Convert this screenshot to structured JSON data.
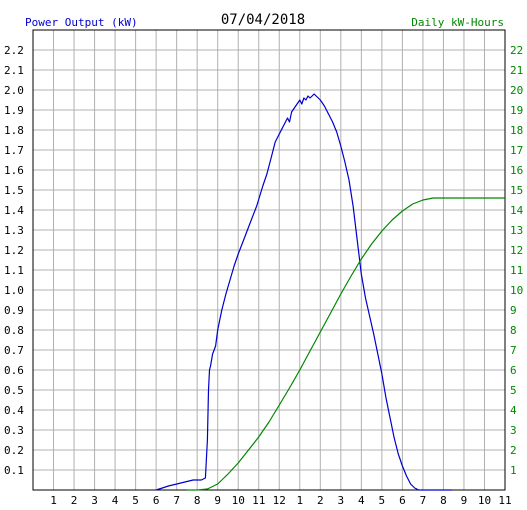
{
  "chart_data": {
    "type": "line",
    "title": "07/04/2018",
    "ylabel_left": "Power Output (kW)",
    "ylabel_right": "Daily kW-Hours",
    "x_tick_labels": [
      "1",
      "2",
      "3",
      "4",
      "5",
      "6",
      "7",
      "8",
      "9",
      "10",
      "11",
      "12",
      "1",
      "2",
      "3",
      "4",
      "5",
      "6",
      "7",
      "8",
      "9",
      "10",
      "11"
    ],
    "xlim": [
      0,
      23
    ],
    "ylim_left": [
      0,
      2.3
    ],
    "ylim_right": [
      0,
      23
    ],
    "y_left_ticks": [
      "0.1",
      "0.2",
      "0.3",
      "0.4",
      "0.5",
      "0.6",
      "0.7",
      "0.8",
      "0.9",
      "1.0",
      "1.1",
      "1.2",
      "1.3",
      "1.4",
      "1.5",
      "1.6",
      "1.7",
      "1.8",
      "1.9",
      "2.0",
      "2.1",
      "2.2"
    ],
    "y_right_ticks": [
      "1",
      "2",
      "3",
      "4",
      "5",
      "6",
      "7",
      "8",
      "9",
      "10",
      "11",
      "12",
      "13",
      "14",
      "15",
      "16",
      "17",
      "18",
      "19",
      "20",
      "21",
      "22"
    ],
    "grid": true,
    "colors": {
      "power": "#0000cc",
      "energy": "#008800",
      "grid": "#b0b0b0",
      "left_axis_text": "#000000",
      "right_axis_text": "#008800",
      "ylabel_left_color": "#0000cc",
      "ylabel_right_color": "#008800"
    },
    "series": [
      {
        "axis": "left",
        "color": "#0000cc",
        "x": [
          6.0,
          6.3,
          6.6,
          7.0,
          7.4,
          7.8,
          8.2,
          8.4,
          8.5,
          8.55,
          8.6,
          8.65,
          8.75,
          8.9,
          9.0,
          9.2,
          9.4,
          9.6,
          9.8,
          10.0,
          10.3,
          10.6,
          10.9,
          11.2,
          11.4,
          11.6,
          11.8,
          12.0,
          12.2,
          12.4,
          12.5,
          12.6,
          12.8,
          13.0,
          13.1,
          13.2,
          13.3,
          13.4,
          13.5,
          13.6,
          13.7,
          13.8,
          14.0,
          14.2,
          14.4,
          14.6,
          14.8,
          15.0,
          15.2,
          15.4,
          15.6,
          15.8,
          16.0,
          16.2,
          16.4,
          16.6,
          16.8,
          17.0,
          17.2,
          17.4,
          17.6,
          17.8,
          18.0,
          18.2,
          18.4,
          18.6,
          18.8,
          19.0,
          19.2,
          19.4,
          19.6,
          19.8,
          20.0,
          20.2,
          20.4
        ],
        "values": [
          0.0,
          0.01,
          0.02,
          0.03,
          0.04,
          0.05,
          0.05,
          0.06,
          0.25,
          0.5,
          0.6,
          0.62,
          0.68,
          0.72,
          0.8,
          0.9,
          0.98,
          1.05,
          1.12,
          1.18,
          1.26,
          1.34,
          1.42,
          1.52,
          1.58,
          1.66,
          1.74,
          1.78,
          1.82,
          1.86,
          1.84,
          1.89,
          1.92,
          1.95,
          1.93,
          1.96,
          1.95,
          1.97,
          1.96,
          1.97,
          1.98,
          1.97,
          1.95,
          1.92,
          1.88,
          1.84,
          1.79,
          1.72,
          1.64,
          1.55,
          1.42,
          1.25,
          1.08,
          0.96,
          0.87,
          0.78,
          0.68,
          0.58,
          0.46,
          0.36,
          0.26,
          0.18,
          0.12,
          0.07,
          0.03,
          0.01,
          0.0,
          0.0,
          0.0,
          0.0,
          0.0,
          0.0,
          0.0,
          0.0,
          0.0
        ]
      },
      {
        "axis": "right",
        "color": "#008800",
        "x": [
          7.5,
          8.0,
          8.5,
          9.0,
          9.5,
          10.0,
          10.5,
          11.0,
          11.5,
          12.0,
          12.5,
          13.0,
          13.5,
          14.0,
          14.5,
          15.0,
          15.5,
          16.0,
          16.5,
          17.0,
          17.5,
          18.0,
          18.5,
          19.0,
          19.5,
          20.0,
          20.5,
          21.0,
          21.5,
          22.0,
          22.5,
          23.0
        ],
        "values": [
          0.0,
          0.0,
          0.05,
          0.3,
          0.8,
          1.35,
          2.0,
          2.65,
          3.4,
          4.25,
          5.1,
          6.0,
          6.95,
          7.9,
          8.85,
          9.8,
          10.7,
          11.55,
          12.3,
          12.95,
          13.5,
          13.95,
          14.3,
          14.5,
          14.6,
          14.6,
          14.6,
          14.6,
          14.6,
          14.6,
          14.6,
          14.6
        ]
      }
    ]
  }
}
